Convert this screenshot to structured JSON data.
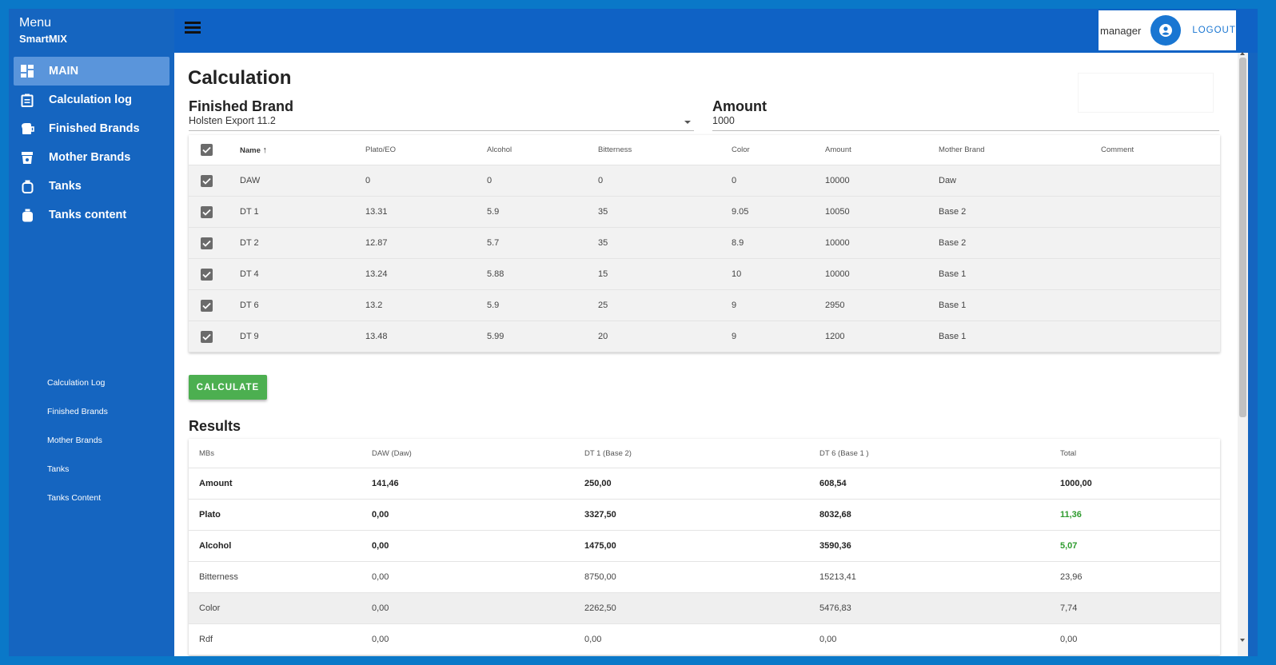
{
  "sidebar": {
    "menu_title": "Menu",
    "app_name": "SmartMIX",
    "items": [
      {
        "label": "MAIN",
        "icon": "dashboard-icon"
      },
      {
        "label": "Calculation log",
        "icon": "clipboard-icon"
      },
      {
        "label": "Finished Brands",
        "icon": "beer-tap-icon"
      },
      {
        "label": "Mother Brands",
        "icon": "cup-icon"
      },
      {
        "label": "Tanks",
        "icon": "tank-icon"
      },
      {
        "label": "Tanks content",
        "icon": "tank-filled-icon"
      }
    ],
    "sub_items": [
      "Calculation Log",
      "Finished Brands",
      "Mother Brands",
      "Tanks",
      "Tanks Content"
    ]
  },
  "header": {
    "username": "manager",
    "logout_label": "LOGOUT"
  },
  "main": {
    "title": "Calculation",
    "finished_brand": {
      "label": "Finished Brand",
      "value": "Holsten Export 11.2"
    },
    "amount": {
      "label": "Amount",
      "value": "1000"
    },
    "brands_table": {
      "columns": [
        "Name",
        "Plato/EO",
        "Alcohol",
        "Bitterness",
        "Color",
        "Amount",
        "Mother Brand",
        "Comment"
      ],
      "rows": [
        [
          "DAW",
          "0",
          "0",
          "0",
          "0",
          "10000",
          "Daw",
          ""
        ],
        [
          "DT 1",
          "13.31",
          "5.9",
          "35",
          "9.05",
          "10050",
          "Base 2",
          ""
        ],
        [
          "DT 2",
          "12.87",
          "5.7",
          "35",
          "8.9",
          "10000",
          "Base 2",
          ""
        ],
        [
          "DT 4",
          "13.24",
          "5.88",
          "15",
          "10",
          "10000",
          "Base 1",
          ""
        ],
        [
          "DT 6",
          "13.2",
          "5.9",
          "25",
          "9",
          "2950",
          "Base 1",
          ""
        ],
        [
          "DT 9",
          "13.48",
          "5.99",
          "20",
          "9",
          "1200",
          "Base 1",
          ""
        ]
      ]
    },
    "calculate_label": "CALCULATE",
    "results": {
      "title": "Results",
      "columns": [
        "MBs",
        "DAW (Daw)",
        "DT 1 (Base 2)",
        "DT 6 (Base 1 )",
        "Total"
      ],
      "rows": [
        [
          "Amount",
          "141,46",
          "250,00",
          "608,54",
          "1000,00"
        ],
        [
          "Plato",
          "0,00",
          "3327,50",
          "8032,68",
          "11,36"
        ],
        [
          "Alcohol",
          "0,00",
          "1475,00",
          "3590,36",
          "5,07"
        ],
        [
          "Bitterness",
          "0,00",
          "8750,00",
          "15213,41",
          "23,96"
        ],
        [
          "Color",
          "0,00",
          "2262,50",
          "5476,83",
          "7,74"
        ],
        [
          "Rdf",
          "0,00",
          "0,00",
          "0,00",
          "0,00"
        ]
      ]
    }
  },
  "colors": {
    "primary": "#1565c0",
    "accent": "#1976d2",
    "success": "#4caf50",
    "total_highlight": "#2e9b2e"
  }
}
